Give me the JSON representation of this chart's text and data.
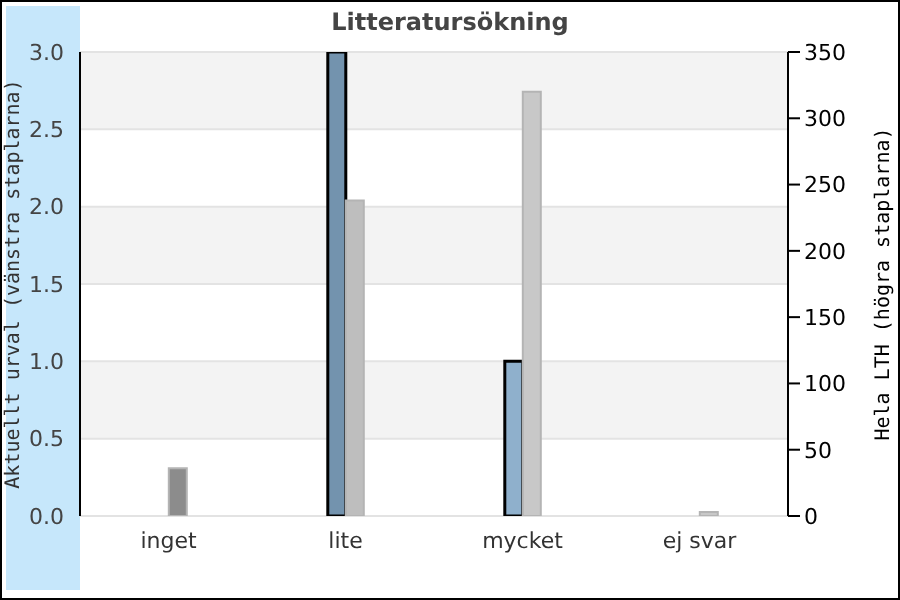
{
  "chart_data": {
    "type": "bar",
    "title": "Litteratursökning",
    "ylabel": "Aktuellt urval (vänstra staplarna)",
    "y2label": "Hela LTH (högra staplarna)",
    "categories": [
      "inget",
      "lite",
      "mycket",
      "ej svar"
    ],
    "series": [
      {
        "colors": [
          "#7393ae",
          "#7393ae",
          "#8fb0cc",
          "#8fb0cc"
        ],
        "values": [
          0,
          3.0,
          1.0,
          0
        ]
      },
      {
        "colors": [
          "#8c8c8c",
          "#bebebe",
          "#c8c8c8",
          "#c8c8c8"
        ],
        "values": [
          36,
          238,
          320,
          3
        ],
        "axis": "y2"
      }
    ],
    "ylim": [
      0,
      3.0
    ],
    "yticks": [
      {
        "value": 0,
        "label": "0.0"
      },
      {
        "value": 0.5,
        "label": "0.5"
      },
      {
        "value": 1,
        "label": "1.0"
      },
      {
        "value": 1.5,
        "label": "1.5"
      },
      {
        "value": 2,
        "label": "2.0"
      },
      {
        "value": 2.5,
        "label": "2.5"
      },
      {
        "value": 3,
        "label": "3.0"
      }
    ],
    "y2lim": [
      0,
      350
    ],
    "y2ticks": [
      0,
      50,
      100,
      150,
      200,
      250,
      300,
      350
    ],
    "grid": "y",
    "legend": false
  }
}
